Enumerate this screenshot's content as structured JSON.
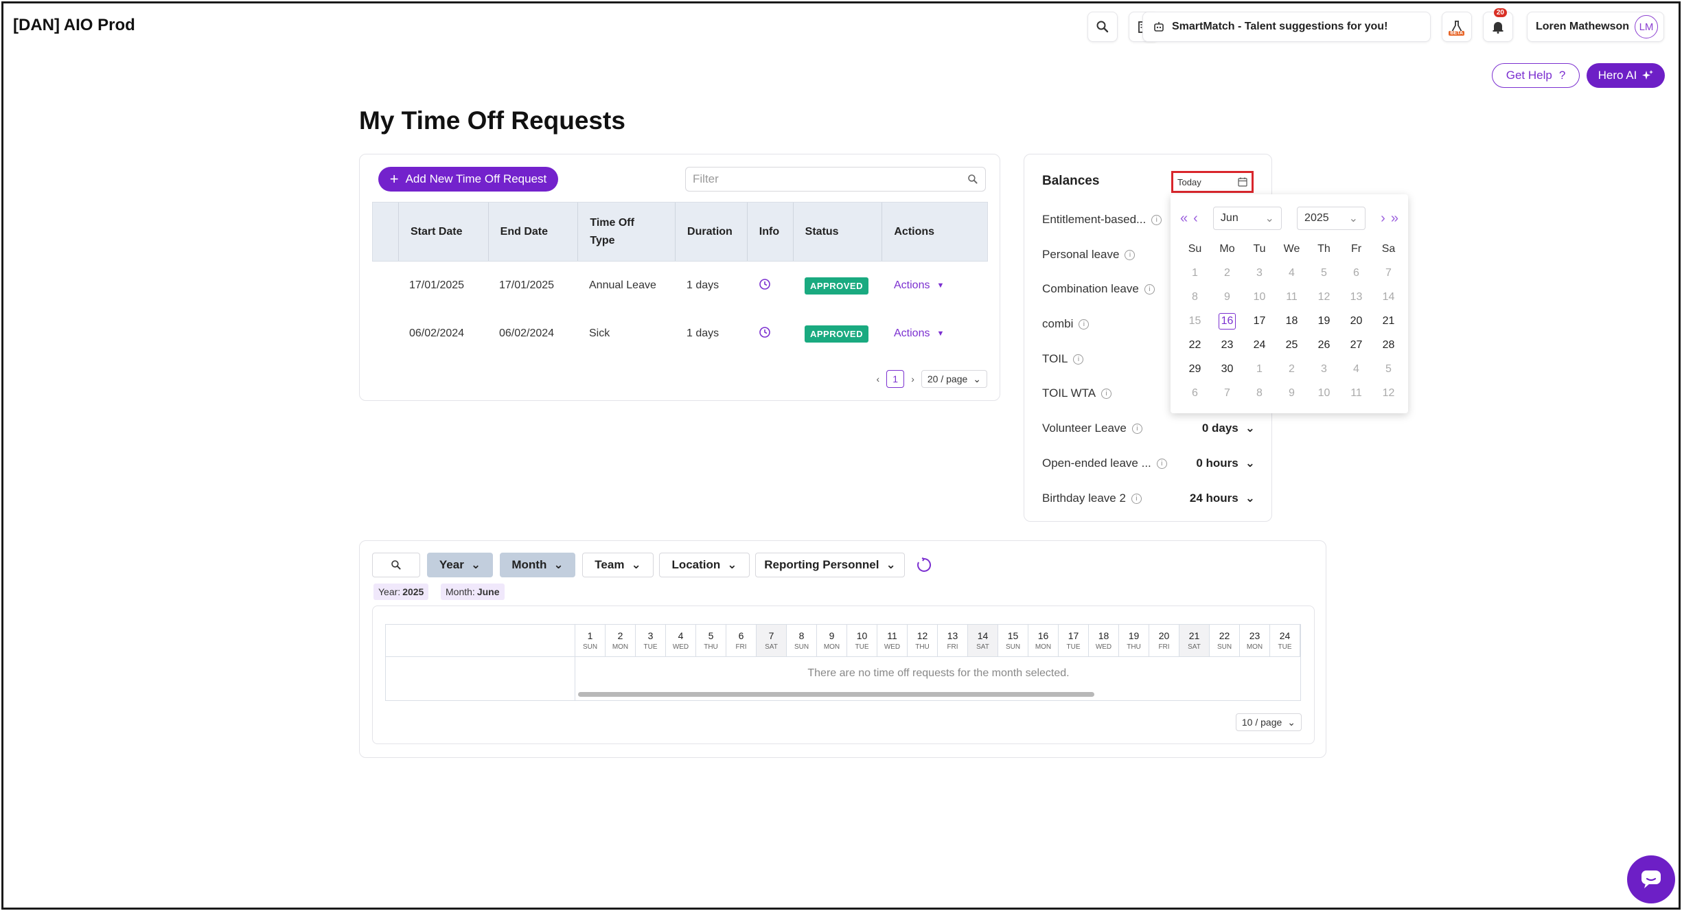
{
  "app": {
    "title": "[DAN] AIO Prod"
  },
  "topbar": {
    "smartmatch_label": "SmartMatch - Talent suggestions for you!",
    "beta_label": "BETA",
    "notifications_count": "20",
    "user_name": "Loren Mathewson",
    "user_initials": "LM"
  },
  "help": {
    "get_help_label": "Get Help",
    "hero_ai_label": "Hero AI"
  },
  "page": {
    "title": "My Time Off Requests"
  },
  "requests": {
    "add_button_label": "Add New Time Off Request",
    "filter_placeholder": "Filter",
    "columns": [
      "Start Date",
      "End Date",
      "Time Off Type",
      "Duration",
      "Info",
      "Status",
      "Actions"
    ],
    "rows": [
      {
        "start": "17/01/2025",
        "end": "17/01/2025",
        "type": "Annual Leave",
        "duration": "1 days",
        "status": "APPROVED",
        "actions": "Actions"
      },
      {
        "start": "06/02/2024",
        "end": "06/02/2024",
        "type": "Sick",
        "duration": "1 days",
        "status": "APPROVED",
        "actions": "Actions"
      }
    ],
    "current_page": "1",
    "page_size": "20 / page"
  },
  "balances": {
    "title": "Balances",
    "date_value": "Today",
    "items": [
      {
        "label": "Entitlement-based...",
        "value": ""
      },
      {
        "label": "Personal leave",
        "value": ""
      },
      {
        "label": "Combination leave",
        "value": ""
      },
      {
        "label": "combi",
        "value": ""
      },
      {
        "label": "TOIL",
        "value": ""
      },
      {
        "label": "TOIL WTA",
        "value": ""
      },
      {
        "label": "Volunteer Leave",
        "value": "0 days"
      },
      {
        "label": "Open-ended leave ...",
        "value": "0 hours"
      },
      {
        "label": "Birthday leave 2",
        "value": "24 hours"
      }
    ]
  },
  "datepicker": {
    "month": "Jun",
    "year": "2025",
    "weekdays": [
      "Su",
      "Mo",
      "Tu",
      "We",
      "Th",
      "Fr",
      "Sa"
    ],
    "days": [
      {
        "d": "1",
        "m": true
      },
      {
        "d": "2",
        "m": true
      },
      {
        "d": "3",
        "m": true
      },
      {
        "d": "4",
        "m": true
      },
      {
        "d": "5",
        "m": true
      },
      {
        "d": "6",
        "m": true
      },
      {
        "d": "7",
        "m": true
      },
      {
        "d": "8",
        "m": true
      },
      {
        "d": "9",
        "m": true
      },
      {
        "d": "10",
        "m": true
      },
      {
        "d": "11",
        "m": true
      },
      {
        "d": "12",
        "m": true
      },
      {
        "d": "13",
        "m": true
      },
      {
        "d": "14",
        "m": true
      },
      {
        "d": "15",
        "m": true
      },
      {
        "d": "16",
        "t": true
      },
      {
        "d": "17"
      },
      {
        "d": "18"
      },
      {
        "d": "19"
      },
      {
        "d": "20"
      },
      {
        "d": "21"
      },
      {
        "d": "22"
      },
      {
        "d": "23"
      },
      {
        "d": "24"
      },
      {
        "d": "25"
      },
      {
        "d": "26"
      },
      {
        "d": "27"
      },
      {
        "d": "28"
      },
      {
        "d": "29"
      },
      {
        "d": "30"
      },
      {
        "d": "1",
        "m": true
      },
      {
        "d": "2",
        "m": true
      },
      {
        "d": "3",
        "m": true
      },
      {
        "d": "4",
        "m": true
      },
      {
        "d": "5",
        "m": true
      },
      {
        "d": "6",
        "m": true
      },
      {
        "d": "7",
        "m": true
      },
      {
        "d": "8",
        "m": true
      },
      {
        "d": "9",
        "m": true
      },
      {
        "d": "10",
        "m": true
      },
      {
        "d": "11",
        "m": true
      },
      {
        "d": "12",
        "m": true
      }
    ]
  },
  "team_calendar": {
    "filters": {
      "year": "Year",
      "month": "Month",
      "team": "Team",
      "location": "Location",
      "reporting": "Reporting Personnel"
    },
    "chips": {
      "year_label": "Year:",
      "year_value": "2025",
      "month_label": "Month:",
      "month_value": "June"
    },
    "days": [
      {
        "n": "1",
        "w": "SUN"
      },
      {
        "n": "2",
        "w": "MON"
      },
      {
        "n": "3",
        "w": "TUE"
      },
      {
        "n": "4",
        "w": "WED"
      },
      {
        "n": "5",
        "w": "THU"
      },
      {
        "n": "6",
        "w": "FRI"
      },
      {
        "n": "7",
        "w": "SAT",
        "we": true
      },
      {
        "n": "8",
        "w": "SUN"
      },
      {
        "n": "9",
        "w": "MON"
      },
      {
        "n": "10",
        "w": "TUE"
      },
      {
        "n": "11",
        "w": "WED"
      },
      {
        "n": "12",
        "w": "THU"
      },
      {
        "n": "13",
        "w": "FRI"
      },
      {
        "n": "14",
        "w": "SAT",
        "we": true
      },
      {
        "n": "15",
        "w": "SUN"
      },
      {
        "n": "16",
        "w": "MON"
      },
      {
        "n": "17",
        "w": "TUE"
      },
      {
        "n": "18",
        "w": "WED"
      },
      {
        "n": "19",
        "w": "THU"
      },
      {
        "n": "20",
        "w": "FRI"
      },
      {
        "n": "21",
        "w": "SAT",
        "we": true
      },
      {
        "n": "22",
        "w": "SUN"
      },
      {
        "n": "23",
        "w": "MON"
      },
      {
        "n": "24",
        "w": "TUE"
      }
    ],
    "empty_message": "There are no time off requests for the month selected.",
    "page_size": "10 / page"
  },
  "colors": {
    "accent": "#7322cc",
    "approved": "#1aaa80",
    "highlight_border": "#d9262c"
  }
}
